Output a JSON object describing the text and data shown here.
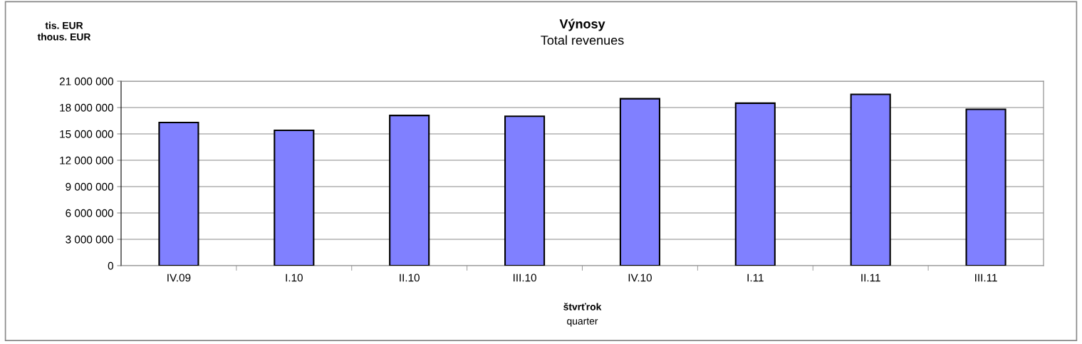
{
  "chart_data": {
    "type": "bar",
    "title": "Výnosy",
    "subtitle": "Total revenues",
    "ylabel": "tis. EUR\nthous. EUR",
    "xlabel": "štvrťrok\nquarter",
    "categories": [
      "IV.09",
      "I.10",
      "II.10",
      "III.10",
      "IV.10",
      "I.11",
      "II.11",
      "III.11"
    ],
    "values": [
      16300000,
      15400000,
      17100000,
      17000000,
      19000000,
      18500000,
      19500000,
      17800000
    ],
    "color": "#8080ff",
    "ylim": [
      0,
      21000000
    ],
    "yticks": [
      {
        "value": 0,
        "label": "0"
      },
      {
        "value": 3000000,
        "label": "3 000 000"
      },
      {
        "value": 6000000,
        "label": "6 000 000"
      },
      {
        "value": 9000000,
        "label": "9 000 000"
      },
      {
        "value": 12000000,
        "label": "12 000 000"
      },
      {
        "value": 15000000,
        "label": "15 000 000"
      },
      {
        "value": 18000000,
        "label": "18 000 000"
      },
      {
        "value": 21000000,
        "label": "21 000 000"
      }
    ],
    "grid": "y"
  }
}
